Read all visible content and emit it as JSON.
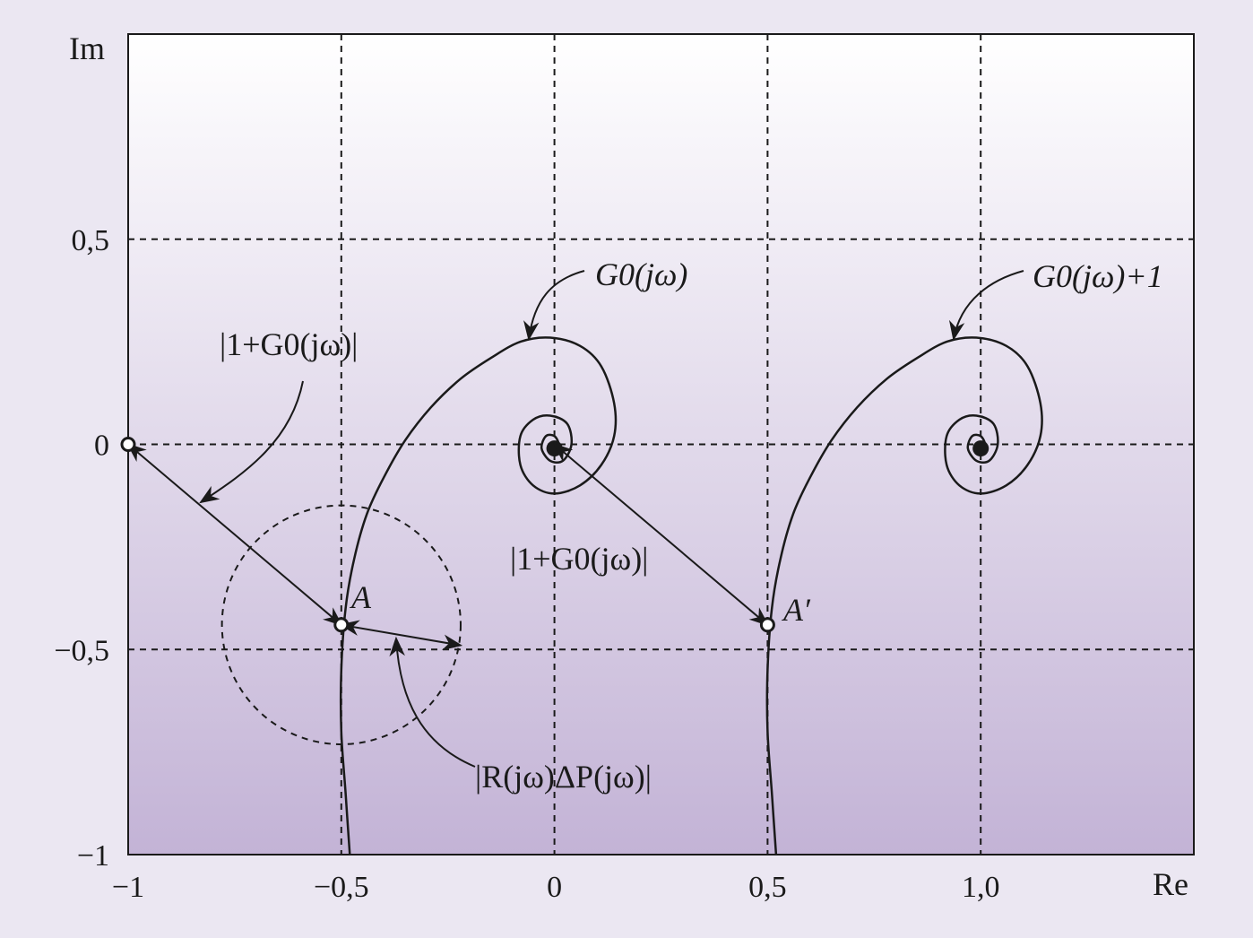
{
  "chart_data": {
    "type": "line",
    "xlabel": "Re",
    "ylabel": "Im",
    "xlim": [
      -1,
      1.5
    ],
    "ylim": [
      -1,
      1
    ],
    "grid": true,
    "xticks": [
      -1,
      -0.5,
      0,
      0.5,
      1.0
    ],
    "xtick_labels": [
      "−1",
      "−0,5",
      "0",
      "0,5",
      "1,0"
    ],
    "yticks": [
      -1,
      -0.5,
      0,
      0.5
    ],
    "ytick_labels": [
      "−1",
      "−0,5",
      "0",
      "0,5"
    ],
    "series": [
      {
        "name": "G0(jω)",
        "x": [
          -0.48,
          -0.49,
          -0.5,
          -0.5,
          -0.49,
          -0.47,
          -0.44,
          -0.4,
          -0.35,
          -0.29,
          -0.22,
          -0.15,
          -0.08,
          -0.01,
          0.06,
          0.11,
          0.14,
          0.14,
          0.11,
          0.06,
          0.0,
          -0.05,
          -0.08,
          -0.08,
          -0.05,
          -0.01,
          0.03,
          0.04,
          0.02,
          -0.01,
          -0.03,
          -0.02,
          0.0,
          0.01,
          0.0
        ],
        "y": [
          -1.0,
          -0.85,
          -0.7,
          -0.55,
          -0.4,
          -0.28,
          -0.17,
          -0.08,
          0.01,
          0.09,
          0.16,
          0.21,
          0.25,
          0.26,
          0.24,
          0.19,
          0.1,
          0.02,
          -0.05,
          -0.1,
          -0.12,
          -0.1,
          -0.05,
          0.02,
          0.06,
          0.07,
          0.05,
          0.0,
          -0.04,
          -0.04,
          -0.01,
          0.02,
          0.02,
          0.0,
          -0.01
        ]
      },
      {
        "name": "G0(jω)+1",
        "x": [
          0.52,
          0.51,
          0.5,
          0.5,
          0.51,
          0.53,
          0.56,
          0.6,
          0.65,
          0.71,
          0.78,
          0.85,
          0.92,
          0.99,
          1.06,
          1.11,
          1.14,
          1.14,
          1.11,
          1.06,
          1.0,
          0.95,
          0.92,
          0.92,
          0.95,
          0.99,
          1.03,
          1.04,
          1.02,
          0.99,
          0.97,
          0.98,
          1.0,
          1.01,
          1.0
        ],
        "y": [
          -1.0,
          -0.85,
          -0.7,
          -0.55,
          -0.4,
          -0.28,
          -0.17,
          -0.08,
          0.01,
          0.09,
          0.16,
          0.21,
          0.25,
          0.26,
          0.24,
          0.19,
          0.1,
          0.02,
          -0.05,
          -0.1,
          -0.12,
          -0.1,
          -0.05,
          0.02,
          0.06,
          0.07,
          0.05,
          0.0,
          -0.04,
          -0.04,
          -0.01,
          0.02,
          0.02,
          0.0,
          -0.01
        ]
      }
    ],
    "points": [
      {
        "label": "",
        "x": -1,
        "y": 0
      },
      {
        "label": "A",
        "x": -0.5,
        "y": -0.44
      },
      {
        "label": "A′",
        "x": 0.5,
        "y": -0.44
      }
    ],
    "uncertainty_circle": {
      "center_x": -0.5,
      "center_y": -0.44,
      "radius": 0.28
    },
    "annotations": [
      {
        "text": "|1+G0(jω)|",
        "from": [
          -1,
          0
        ],
        "to": [
          -0.5,
          -0.44
        ]
      },
      {
        "text": "|1+G0(jω)|",
        "from": [
          0,
          0
        ],
        "to": [
          0.5,
          -0.44
        ]
      },
      {
        "text": "|R(jω)ΔP(jω)|",
        "from": [
          -0.5,
          -0.44
        ],
        "to": [
          -0.22,
          -0.49
        ]
      }
    ]
  },
  "labels": {
    "xlabel": "Re",
    "ylabel": "Im",
    "g0": "G0(jω)",
    "g0p1": "G0(jω)+1",
    "mag_left": "|1+G0(jω)|",
    "mag_right": "|1+G0(jω)|",
    "delta": "|R(jω)ΔP(jω)|",
    "point_a": "A",
    "point_a2": "A′"
  },
  "colors": {
    "gradient_top": "#ffffff",
    "gradient_bottom": "#c3b3d6",
    "ink": "#1a1a1a"
  }
}
